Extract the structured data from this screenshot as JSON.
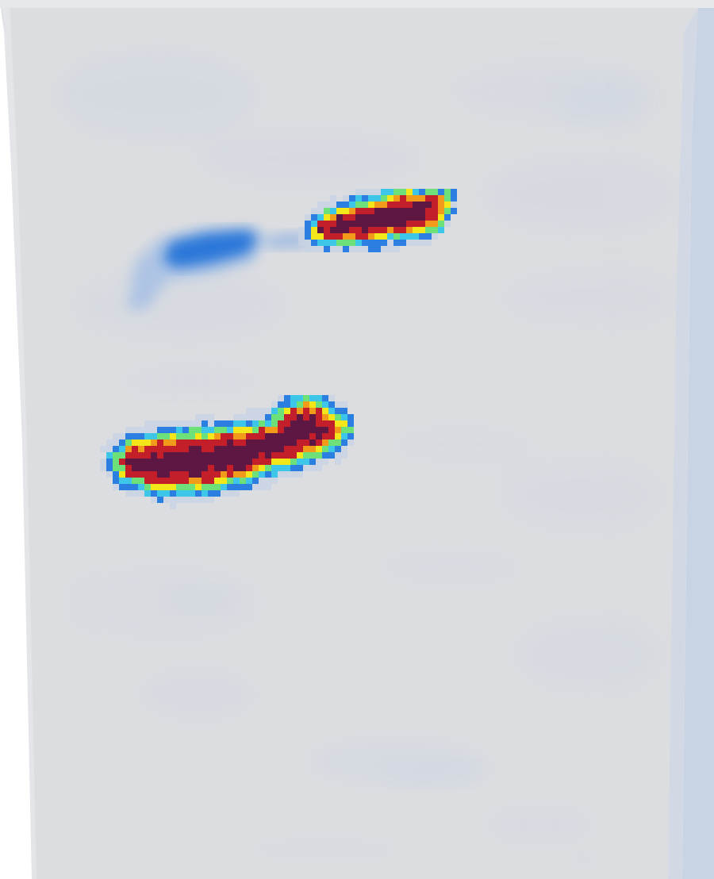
{
  "scene": {
    "description_visible_text": "",
    "colors": {
      "background": "#ffffff",
      "field_base": "#d9dadd",
      "field_light": "#dfe1e5",
      "field_blue_tint": "#c8d3e3",
      "edge_blue": "#c3cfe2",
      "low_blue": "#2a7fe0",
      "mid_blue": "#1c6fd8",
      "cyan": "#3ec6e8",
      "green": "#6ee07a",
      "yellow": "#f3e61a",
      "orange": "#f29a1a",
      "red": "#c21f2a",
      "dark_red": "#5e1743"
    },
    "colormap": [
      "#c8d3e3",
      "#2a7fe0",
      "#3ec6e8",
      "#6ee07a",
      "#f3e61a",
      "#f29a1a",
      "#c21f2a",
      "#5e1743"
    ]
  }
}
